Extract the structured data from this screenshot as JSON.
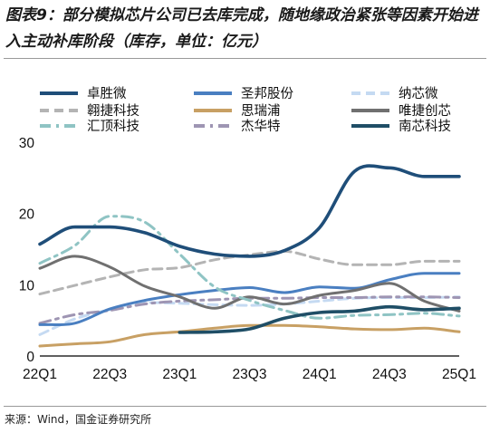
{
  "figure": {
    "title": "图表9：部分模拟芯片公司已去库完成，随地缘政治紧张等因素开始进入主动补库阶段（库存，单位：亿元）",
    "source": "来源：Wind，国金证券研究所"
  },
  "chart_data": {
    "type": "line",
    "ylim": [
      0,
      30
    ],
    "yticks": [
      0,
      10,
      20,
      30
    ],
    "x": [
      "22Q1",
      "22Q2",
      "22Q3",
      "22Q4",
      "23Q1",
      "23Q2",
      "23Q3",
      "23Q4",
      "24Q1",
      "24Q2",
      "24Q3",
      "24Q4",
      "25Q1"
    ],
    "xtick_labels": [
      "22Q1",
      "22Q3",
      "23Q1",
      "23Q3",
      "24Q1",
      "24Q3",
      "25Q1"
    ],
    "grid": false,
    "legend_position": "top",
    "series": [
      {
        "name": "卓胜微",
        "color": "#1f4e79",
        "dash": "solid",
        "values": [
          15.7,
          18.1,
          18.1,
          17.3,
          15.4,
          14.3,
          14.0,
          14.8,
          18.0,
          25.9,
          26.4,
          25.2,
          25.2
        ]
      },
      {
        "name": "圣邦股份",
        "color": "#4a7fc1",
        "dash": "solid",
        "values": [
          4.4,
          4.6,
          6.6,
          7.8,
          8.6,
          9.2,
          9.6,
          8.9,
          9.7,
          9.5,
          10.7,
          11.6,
          11.6
        ]
      },
      {
        "name": "纳芯微",
        "color": "#c5daf2",
        "dash": "dashed",
        "values": [
          3.0,
          5.2,
          6.5,
          7.5,
          7.4,
          7.2,
          7.1,
          7.3,
          7.7,
          8.1,
          8.2,
          8.2,
          8.3
        ]
      },
      {
        "name": "翱捷科技",
        "color": "#b4b4b4",
        "dash": "dashed",
        "values": [
          8.7,
          9.9,
          11.1,
          12.1,
          12.4,
          13.5,
          14.2,
          14.7,
          13.6,
          12.8,
          12.8,
          13.3,
          13.3
        ]
      },
      {
        "name": "思瑞浦",
        "color": "#c8a064",
        "dash": "solid",
        "values": [
          1.4,
          1.7,
          2.0,
          3.0,
          3.4,
          3.9,
          4.3,
          4.3,
          4.1,
          3.8,
          3.7,
          3.9,
          3.4
        ]
      },
      {
        "name": "唯捷创芯",
        "color": "#707070",
        "dash": "solid",
        "values": [
          12.3,
          14.0,
          12.5,
          9.8,
          8.3,
          6.7,
          8.3,
          7.3,
          8.5,
          9.2,
          10.2,
          7.7,
          6.3
        ]
      },
      {
        "name": "汇顶科技",
        "color": "#8fc4c4",
        "dash": "dashdot",
        "values": [
          13.0,
          15.5,
          19.6,
          18.8,
          14.3,
          9.7,
          7.8,
          6.4,
          5.3,
          5.7,
          5.8,
          6.0,
          5.6
        ]
      },
      {
        "name": "杰华特",
        "color": "#9e95b3",
        "dash": "dashdot",
        "values": [
          4.6,
          5.8,
          6.4,
          7.3,
          7.7,
          7.9,
          8.1,
          8.1,
          8.2,
          8.2,
          8.3,
          8.3,
          8.2
        ]
      },
      {
        "name": "南芯科技",
        "color": "#1f4e66",
        "dash": "solid",
        "values": [
          null,
          null,
          null,
          null,
          3.3,
          3.4,
          3.8,
          5.3,
          6.1,
          6.3,
          6.9,
          6.5,
          6.7
        ]
      }
    ]
  }
}
